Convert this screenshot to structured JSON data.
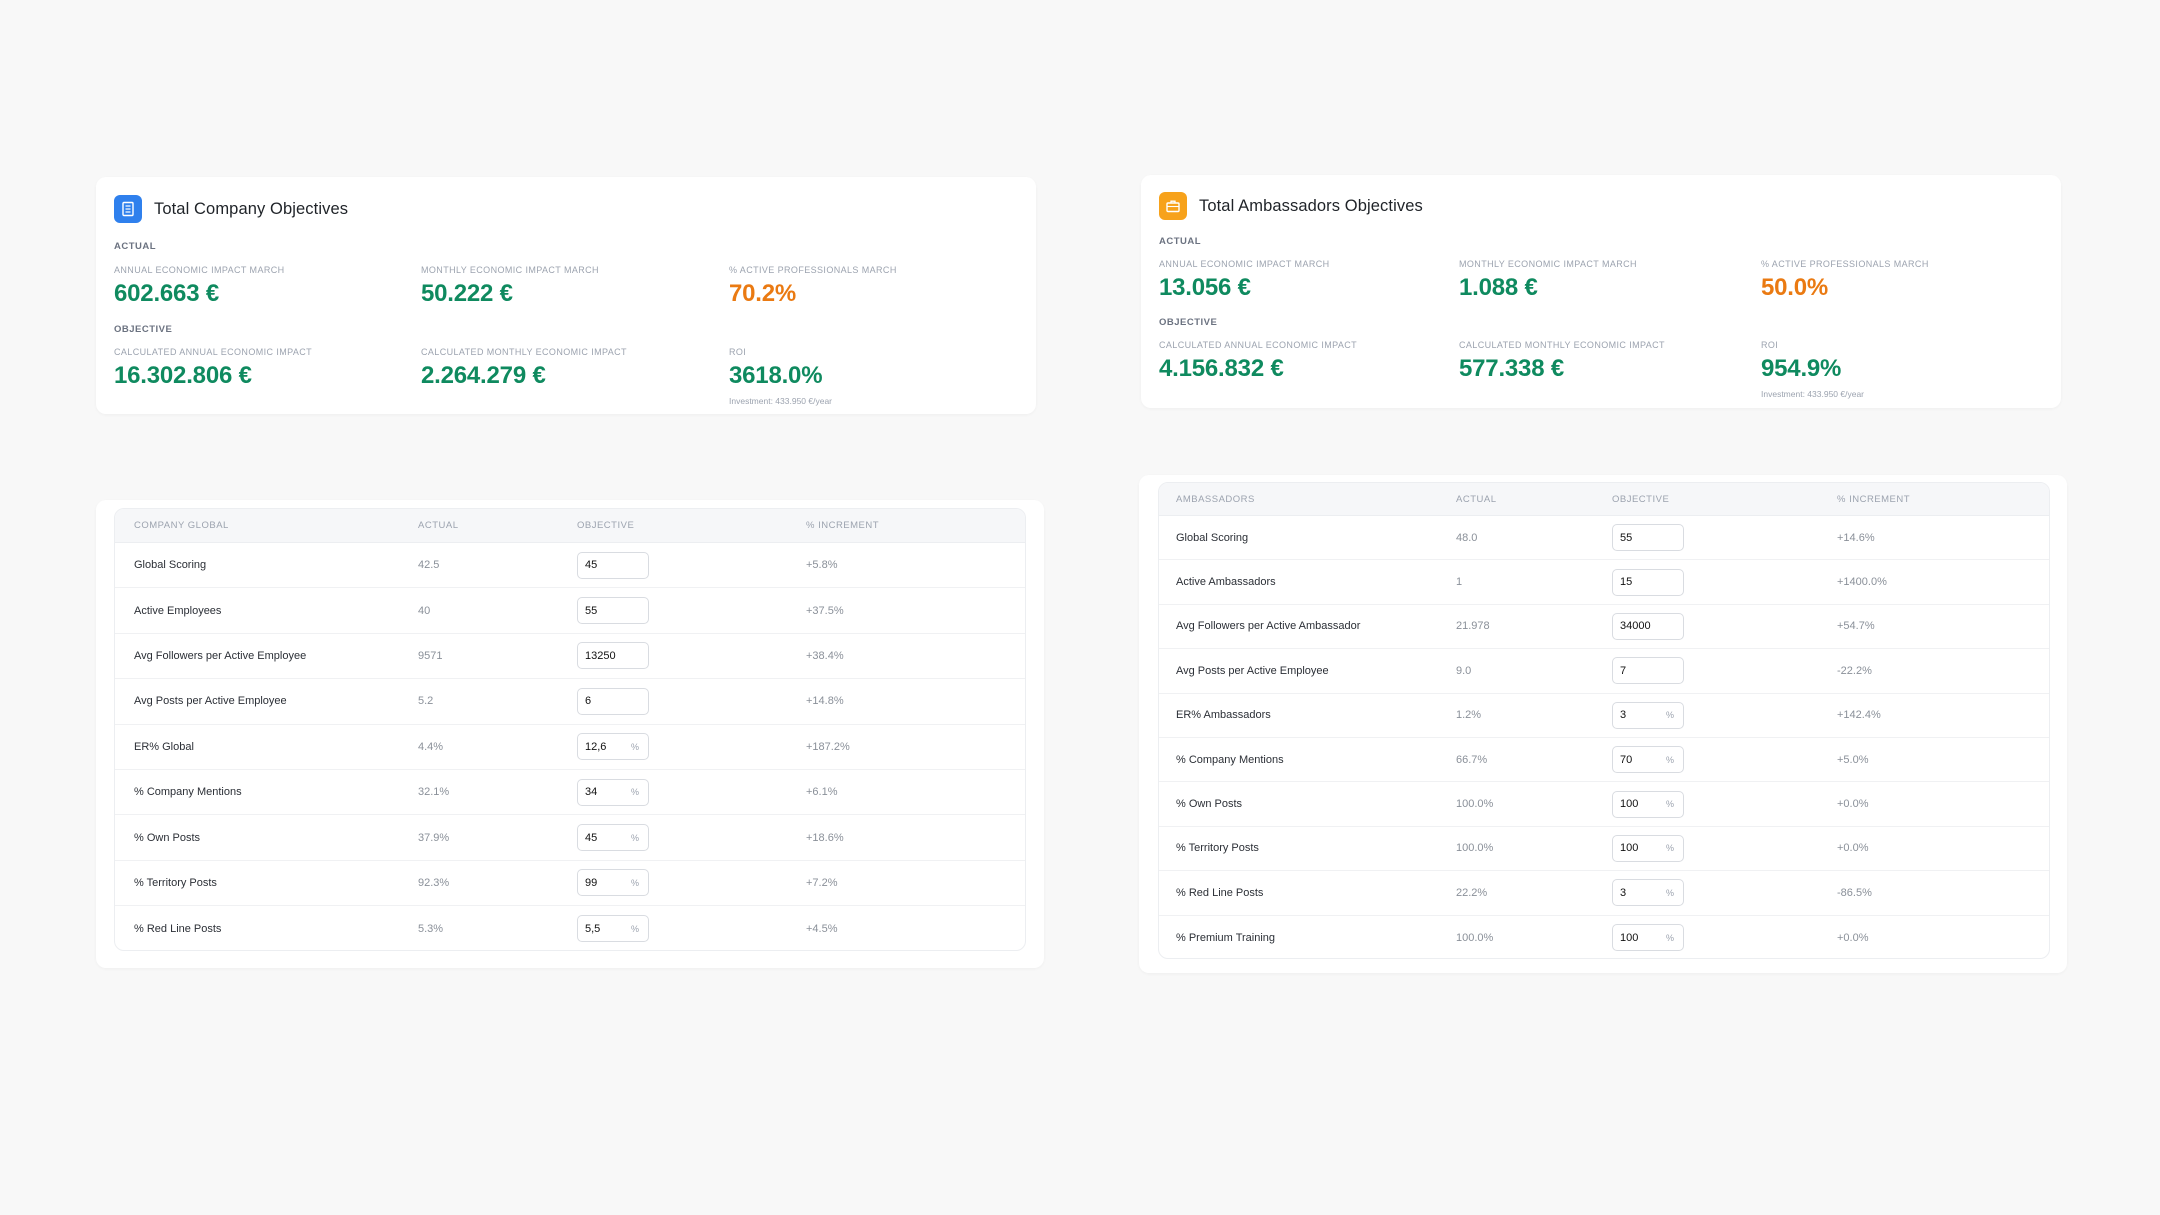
{
  "company_summary": {
    "title": "Total Company Objectives",
    "icon": "building-icon",
    "icon_color": "#2f80ed",
    "actual_label": "ACTUAL",
    "objective_label": "OBJECTIVE",
    "actual": [
      {
        "label": "ANNUAL ECONOMIC IMPACT MARCH",
        "value": "602.663 €"
      },
      {
        "label": "MONTHLY ECONOMIC IMPACT MARCH",
        "value": "50.222 €"
      },
      {
        "label": "% ACTIVE PROFESSIONALS MARCH",
        "value": "70.2%"
      }
    ],
    "objective": [
      {
        "label": "CALCULATED ANNUAL ECONOMIC IMPACT",
        "value": "16.302.806 €"
      },
      {
        "label": "CALCULATED MONTHLY ECONOMIC IMPACT",
        "value": "2.264.279 €"
      },
      {
        "label": "ROI",
        "value": "3618.0%",
        "note": "Investment: 433.950 €/year"
      }
    ]
  },
  "ambassadors_summary": {
    "title": "Total Ambassadors Objectives",
    "icon": "briefcase-icon",
    "icon_color": "#f7a21b",
    "actual_label": "ACTUAL",
    "objective_label": "OBJECTIVE",
    "actual": [
      {
        "label": "ANNUAL ECONOMIC IMPACT MARCH",
        "value": "13.056 €"
      },
      {
        "label": "MONTHLY ECONOMIC IMPACT MARCH",
        "value": "1.088 €"
      },
      {
        "label": "% ACTIVE PROFESSIONALS MARCH",
        "value": "50.0%"
      }
    ],
    "objective": [
      {
        "label": "CALCULATED ANNUAL ECONOMIC IMPACT",
        "value": "4.156.832 €"
      },
      {
        "label": "CALCULATED MONTHLY ECONOMIC IMPACT",
        "value": "577.338 €"
      },
      {
        "label": "ROI",
        "value": "954.9%",
        "note": "Investment: 433.950 €/year"
      }
    ]
  },
  "company_table": {
    "headers": [
      "COMPANY GLOBAL",
      "ACTUAL",
      "OBJECTIVE",
      "% INCREMENT"
    ],
    "rows": [
      {
        "metric": "Global Scoring",
        "actual": "42.5",
        "objective": "45",
        "unit": "",
        "increment": "+5.8%"
      },
      {
        "metric": "Active Employees",
        "actual": "40",
        "objective": "55",
        "unit": "",
        "increment": "+37.5%"
      },
      {
        "metric": "Avg Followers per Active Employee",
        "actual": "9571",
        "objective": "13250",
        "unit": "",
        "increment": "+38.4%"
      },
      {
        "metric": "Avg Posts per Active Employee",
        "actual": "5.2",
        "objective": "6",
        "unit": "",
        "increment": "+14.8%"
      },
      {
        "metric": "ER% Global",
        "actual": "4.4%",
        "objective": "12,6",
        "unit": "%",
        "increment": "+187.2%"
      },
      {
        "metric": "% Company Mentions",
        "actual": "32.1%",
        "objective": "34",
        "unit": "%",
        "increment": "+6.1%"
      },
      {
        "metric": "% Own Posts",
        "actual": "37.9%",
        "objective": "45",
        "unit": "%",
        "increment": "+18.6%"
      },
      {
        "metric": "% Territory Posts",
        "actual": "92.3%",
        "objective": "99",
        "unit": "%",
        "increment": "+7.2%"
      },
      {
        "metric": "% Red Line Posts",
        "actual": "5.3%",
        "objective": "5,5",
        "unit": "%",
        "increment": "+4.5%"
      }
    ]
  },
  "ambassadors_table": {
    "headers": [
      "AMBASSADORS",
      "ACTUAL",
      "OBJECTIVE",
      "% INCREMENT"
    ],
    "rows": [
      {
        "metric": "Global Scoring",
        "actual": "48.0",
        "objective": "55",
        "unit": "",
        "increment": "+14.6%"
      },
      {
        "metric": "Active Ambassadors",
        "actual": "1",
        "objective": "15",
        "unit": "",
        "increment": "+1400.0%"
      },
      {
        "metric": "Avg Followers per Active Ambassador",
        "actual": "21.978",
        "objective": "34000",
        "unit": "",
        "increment": "+54.7%"
      },
      {
        "metric": "Avg Posts per Active Employee",
        "actual": "9.0",
        "objective": "7",
        "unit": "",
        "increment": "-22.2%"
      },
      {
        "metric": "ER% Ambassadors",
        "actual": "1.2%",
        "objective": "3",
        "unit": "%",
        "increment": "+142.4%"
      },
      {
        "metric": "% Company Mentions",
        "actual": "66.7%",
        "objective": "70",
        "unit": "%",
        "increment": "+5.0%"
      },
      {
        "metric": "% Own Posts",
        "actual": "100.0%",
        "objective": "100",
        "unit": "%",
        "increment": "+0.0%"
      },
      {
        "metric": "% Territory Posts",
        "actual": "100.0%",
        "objective": "100",
        "unit": "%",
        "increment": "+0.0%"
      },
      {
        "metric": "% Red Line Posts",
        "actual": "22.2%",
        "objective": "3",
        "unit": "%",
        "increment": "-86.5%"
      },
      {
        "metric": "% Premium Training",
        "actual": "100.0%",
        "objective": "100",
        "unit": "%",
        "increment": "+0.0%"
      }
    ]
  }
}
